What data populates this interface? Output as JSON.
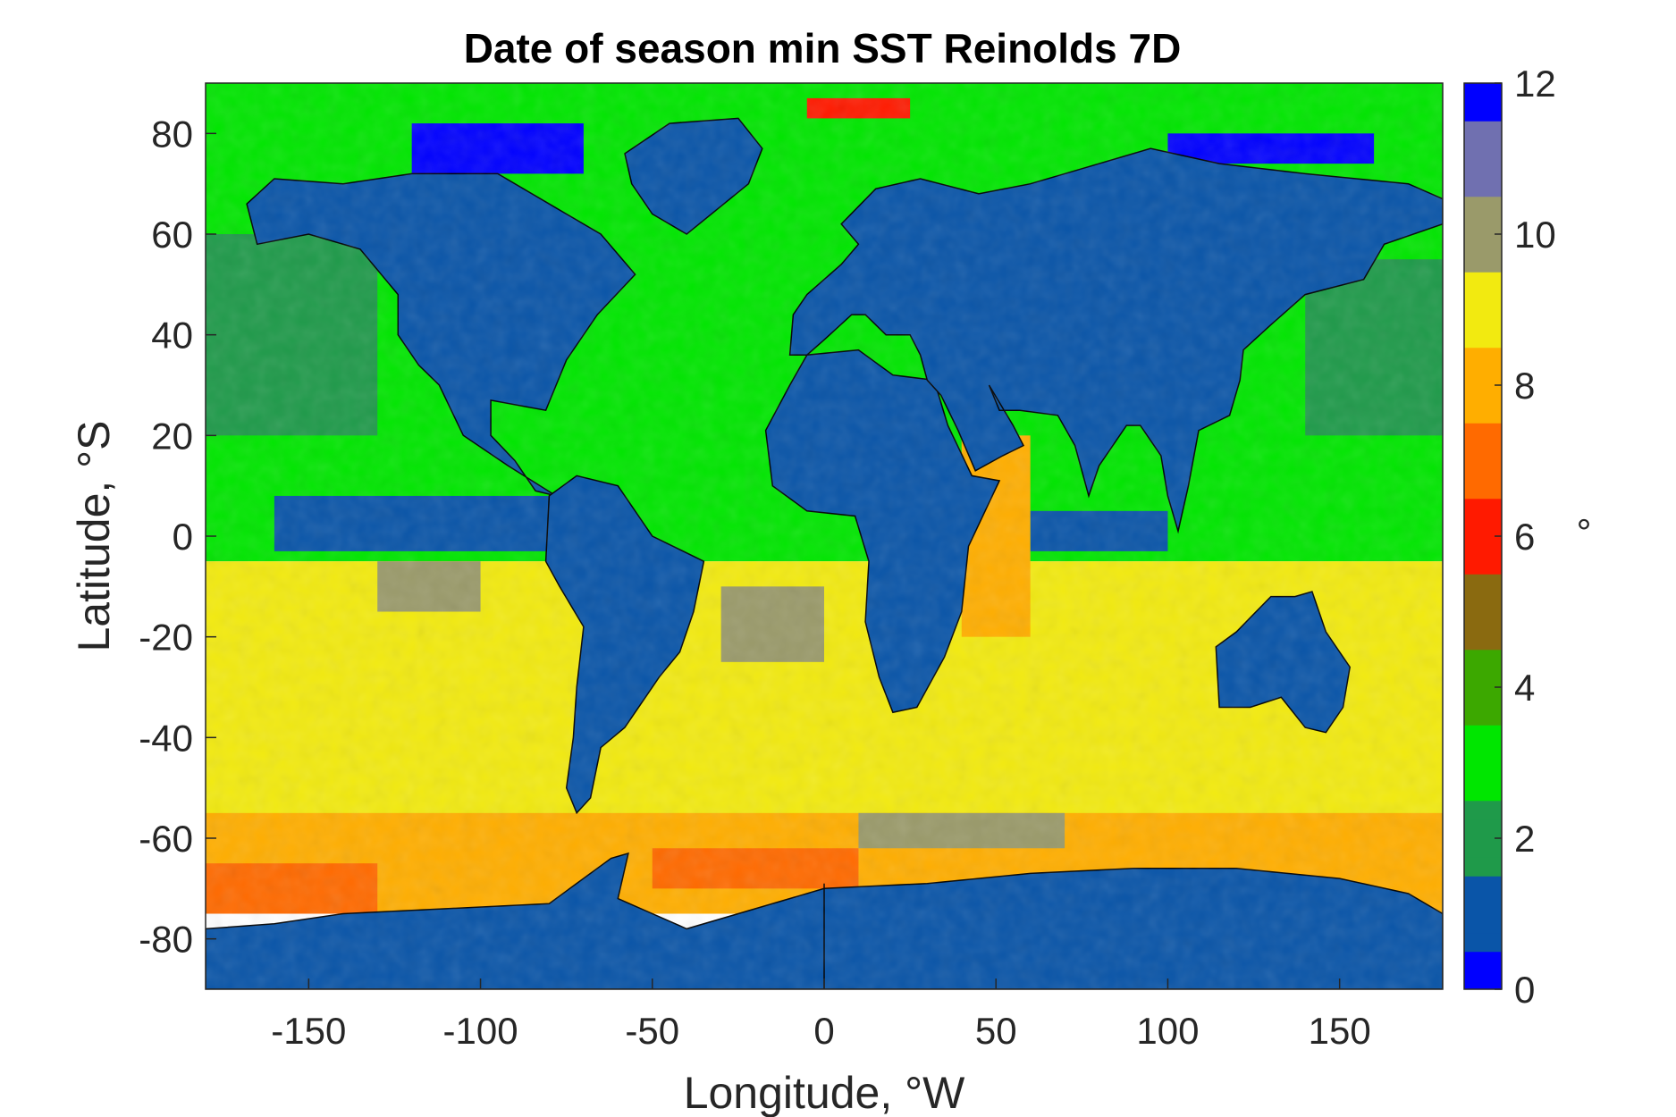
{
  "chart_data": {
    "type": "heatmap",
    "title": "Date of season min SST Reinolds 7D",
    "xlabel": "Longitude, °W",
    "ylabel": "Latitude, °S",
    "colorbar_label": "°",
    "xlim": [
      -180,
      180
    ],
    "ylim": [
      -90,
      90
    ],
    "clim": [
      0,
      12
    ],
    "xticks": [
      -150,
      -100,
      -50,
      0,
      50,
      100,
      150
    ],
    "yticks": [
      -80,
      -60,
      -40,
      -20,
      0,
      20,
      40,
      60,
      80
    ],
    "cticks": [
      0,
      2,
      4,
      6,
      8,
      10,
      12
    ],
    "land_color": "#0a55a8",
    "colormap": [
      {
        "value": 0,
        "color": "#0000ff"
      },
      {
        "value": 1,
        "color": "#0a55a8"
      },
      {
        "value": 2,
        "color": "#1f9a4a"
      },
      {
        "value": 3,
        "color": "#00e600"
      },
      {
        "value": 4,
        "color": "#3ca800"
      },
      {
        "value": 5,
        "color": "#8a6a10"
      },
      {
        "value": 6,
        "color": "#ff1a00"
      },
      {
        "value": 7,
        "color": "#ff6a00"
      },
      {
        "value": 8,
        "color": "#ffae00"
      },
      {
        "value": 9,
        "color": "#f2ea10"
      },
      {
        "value": 10,
        "color": "#9a9a6a"
      },
      {
        "value": 11,
        "color": "#7070b0"
      },
      {
        "value": 12,
        "color": "#0000ff"
      }
    ],
    "regions": [
      {
        "name": "northern-oceans",
        "lat": [
          -5,
          90
        ],
        "lon": [
          -180,
          180
        ],
        "value": 3
      },
      {
        "name": "arctic-high",
        "lat": [
          80,
          90
        ],
        "lon": [
          -180,
          180
        ],
        "value": 2.8
      },
      {
        "name": "arctic-red-patch",
        "lat": [
          83,
          87
        ],
        "lon": [
          -5,
          25
        ],
        "value": 6
      },
      {
        "name": "canadian-archipelago",
        "lat": [
          72,
          82
        ],
        "lon": [
          -120,
          -70
        ],
        "value": 0.5
      },
      {
        "name": "east-siberian-sea",
        "lat": [
          74,
          80
        ],
        "lon": [
          100,
          160
        ],
        "value": 0.5
      },
      {
        "name": "north-pacific-dark",
        "lat": [
          20,
          60
        ],
        "lon": [
          -180,
          -130
        ],
        "value": 2
      },
      {
        "name": "northwest-pacific-dark",
        "lat": [
          20,
          55
        ],
        "lon": [
          140,
          180
        ],
        "value": 2
      },
      {
        "name": "equatorial-pacific-blue",
        "lat": [
          -3,
          8
        ],
        "lon": [
          -160,
          -80
        ],
        "value": 0.8
      },
      {
        "name": "indian-ocean-equatorial",
        "lat": [
          -3,
          5
        ],
        "lon": [
          60,
          100
        ],
        "value": 0.8
      },
      {
        "name": "southern-subtropics",
        "lat": [
          -60,
          -5
        ],
        "lon": [
          -180,
          180
        ],
        "value": 9
      },
      {
        "name": "southern-margin",
        "lat": [
          -75,
          -55
        ],
        "lon": [
          -180,
          180
        ],
        "value": 8
      },
      {
        "name": "pacific-grey-patch",
        "lat": [
          -15,
          -5
        ],
        "lon": [
          -130,
          -100
        ],
        "value": 10
      },
      {
        "name": "atlantic-grey-patch",
        "lat": [
          -25,
          -10
        ],
        "lon": [
          -30,
          0
        ],
        "value": 10
      },
      {
        "name": "indian-grey-patch",
        "lat": [
          -62,
          -55
        ],
        "lon": [
          10,
          70
        ],
        "value": 10
      },
      {
        "name": "ross-sea-red",
        "lat": [
          -75,
          -65
        ],
        "lon": [
          -180,
          -130
        ],
        "value": 7
      },
      {
        "name": "weddell-sea-red",
        "lat": [
          -70,
          -62
        ],
        "lon": [
          -50,
          10
        ],
        "value": 7
      },
      {
        "name": "west-indian-coast-orange",
        "lat": [
          -20,
          20
        ],
        "lon": [
          40,
          60
        ],
        "value": 8
      }
    ]
  }
}
